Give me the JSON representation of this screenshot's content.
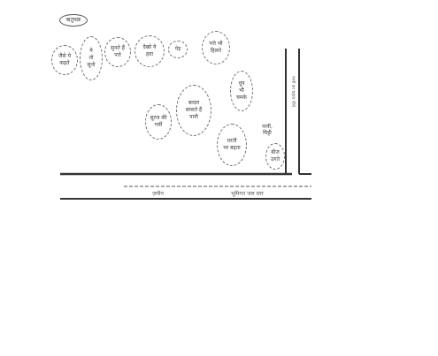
{
  "diagram": {
    "title_bubble": "ऋतुचक्र",
    "bubbles": [
      "जैसे ये\nकहते",
      "ये\nतो\nसुनो",
      "सुनते हैं\nपत्ते",
      "देखो ये\nहवा",
      "पेड़",
      "पत्ते भी\nहिलते",
      "धूप\nभी\nचमके",
      "सूरज की\nगर्मी",
      "बादल\nबरसते हैं\nपानी",
      "धरती\nपर बहता"
    ],
    "small_tags": [
      "पानी,\nमिट्टी",
      "बीज\nउगते"
    ],
    "vertical_label": "पानी का बहाव नीचे",
    "bottom_left_label": "ज़मीन",
    "bottom_right_label": "भूमिगत जल स्तर"
  }
}
